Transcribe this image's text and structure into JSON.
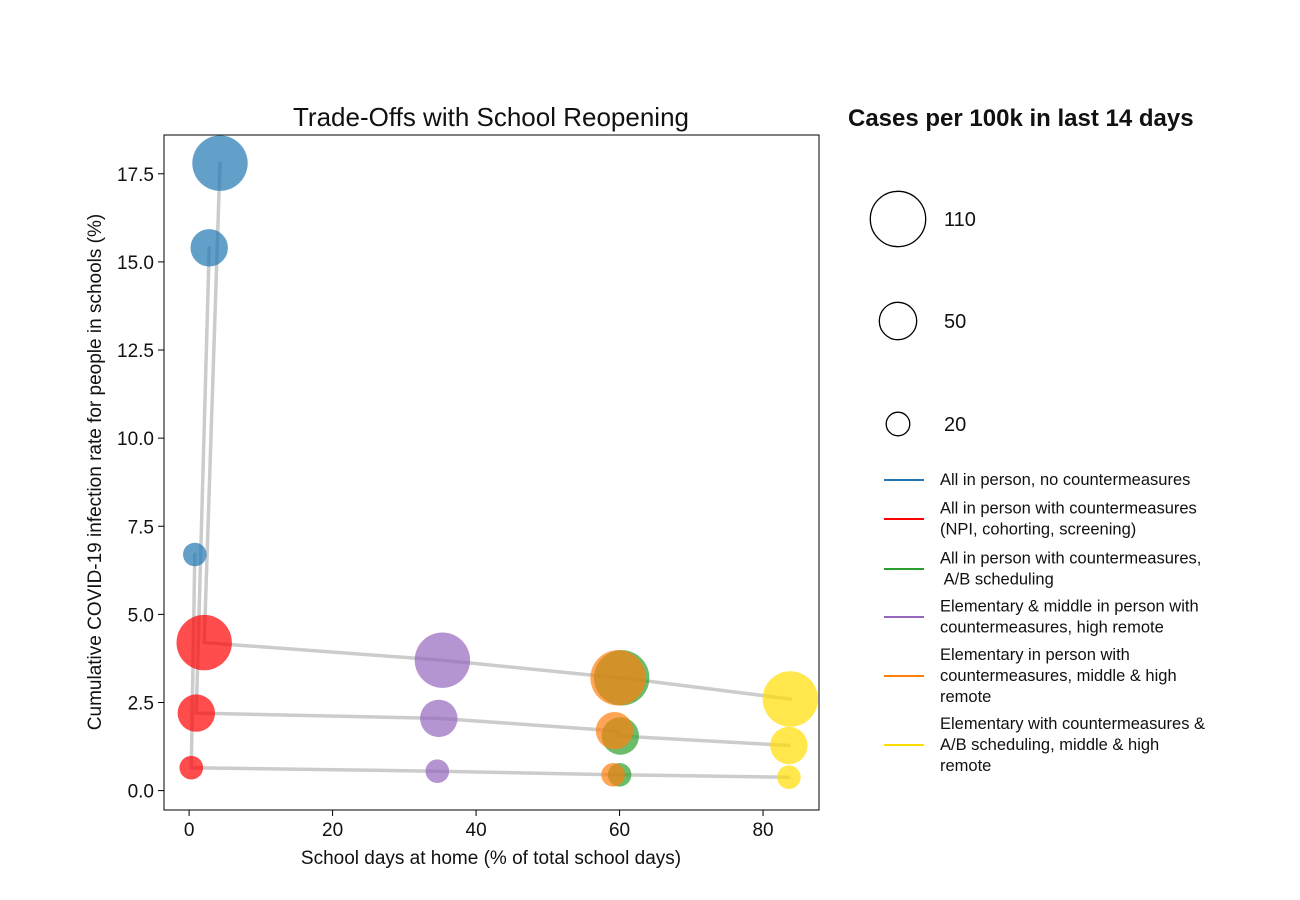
{
  "chart_data": {
    "type": "scatter",
    "title": "Trade-Offs with School Reopening",
    "xlabel": "School days at home (% of total school days)",
    "ylabel": "Cumulative COVID-19 infection rate for people in schools (%)",
    "xlim": [
      -3.5,
      87.8
    ],
    "ylim": [
      -0.55,
      18.6
    ],
    "xticks": [
      0,
      20,
      40,
      60,
      80
    ],
    "yticks": [
      0.0,
      2.5,
      5.0,
      7.5,
      10.0,
      12.5,
      15.0,
      17.5
    ],
    "ytick_labels": [
      "0.0",
      "2.5",
      "5.0",
      "7.5",
      "10.0",
      "12.5",
      "15.0",
      "17.5"
    ],
    "grid": false,
    "size_legend": {
      "title": "Cases per 100k in last 14 days",
      "entries": [
        {
          "label": "110",
          "value": 110
        },
        {
          "label": "50",
          "value": 50
        },
        {
          "label": "20",
          "value": 20
        }
      ]
    },
    "series": [
      {
        "name": "All in person, no countermeasures",
        "color": "#1f77b4",
        "points": [
          {
            "x": 4.3,
            "y": 17.8,
            "size": 110
          },
          {
            "x": 2.8,
            "y": 15.4,
            "size": 50
          },
          {
            "x": 0.8,
            "y": 6.7,
            "size": 20
          }
        ]
      },
      {
        "name": "All in person with countermeasures\n(NPI, cohorting, screening)",
        "color": "#ff0000",
        "points": [
          {
            "x": 2.1,
            "y": 4.2,
            "size": 110
          },
          {
            "x": 1.0,
            "y": 2.2,
            "size": 50
          },
          {
            "x": 0.3,
            "y": 0.65,
            "size": 20
          }
        ]
      },
      {
        "name": "All in person with countermeasures,\n A/B scheduling",
        "color": "#2ca02c",
        "points": [
          {
            "x": 60.3,
            "y": 3.2,
            "size": 110
          },
          {
            "x": 60.1,
            "y": 1.55,
            "size": 50
          },
          {
            "x": 60.0,
            "y": 0.45,
            "size": 20
          }
        ]
      },
      {
        "name": "Elementary & middle in person with\ncountermeasures, high remote",
        "color": "#9467bd",
        "points": [
          {
            "x": 35.3,
            "y": 3.7,
            "size": 110
          },
          {
            "x": 34.8,
            "y": 2.05,
            "size": 50
          },
          {
            "x": 34.6,
            "y": 0.55,
            "size": 20
          }
        ]
      },
      {
        "name": "Elementary in person with\ncountermeasures, middle & high\nremote",
        "color": "#ff7f0e",
        "points": [
          {
            "x": 59.8,
            "y": 3.2,
            "size": 110
          },
          {
            "x": 59.3,
            "y": 1.7,
            "size": 50
          },
          {
            "x": 59.1,
            "y": 0.45,
            "size": 20
          }
        ]
      },
      {
        "name": "Elementary with countermeasures &\nA/B scheduling, middle & high\nremote",
        "color": "#ffdd00",
        "points": [
          {
            "x": 83.8,
            "y": 2.6,
            "size": 110
          },
          {
            "x": 83.6,
            "y": 1.28,
            "size": 50
          },
          {
            "x": 83.6,
            "y": 0.38,
            "size": 20
          }
        ]
      }
    ],
    "connector_color": "#cccccc",
    "connector_paths": [
      {
        "points": [
          [
            4.3,
            17.8
          ],
          [
            2.1,
            4.2
          ],
          [
            35.3,
            3.7
          ],
          [
            59.8,
            3.2
          ],
          [
            60.3,
            3.2
          ],
          [
            83.8,
            2.6
          ]
        ]
      },
      {
        "points": [
          [
            2.8,
            15.4
          ],
          [
            1.0,
            2.2
          ],
          [
            34.8,
            2.05
          ],
          [
            59.3,
            1.7
          ],
          [
            60.1,
            1.55
          ],
          [
            83.6,
            1.28
          ]
        ]
      },
      {
        "points": [
          [
            0.8,
            6.7
          ],
          [
            0.3,
            0.65
          ],
          [
            34.6,
            0.55
          ],
          [
            59.1,
            0.45
          ],
          [
            60.0,
            0.45
          ],
          [
            83.6,
            0.38
          ]
        ]
      }
    ]
  }
}
